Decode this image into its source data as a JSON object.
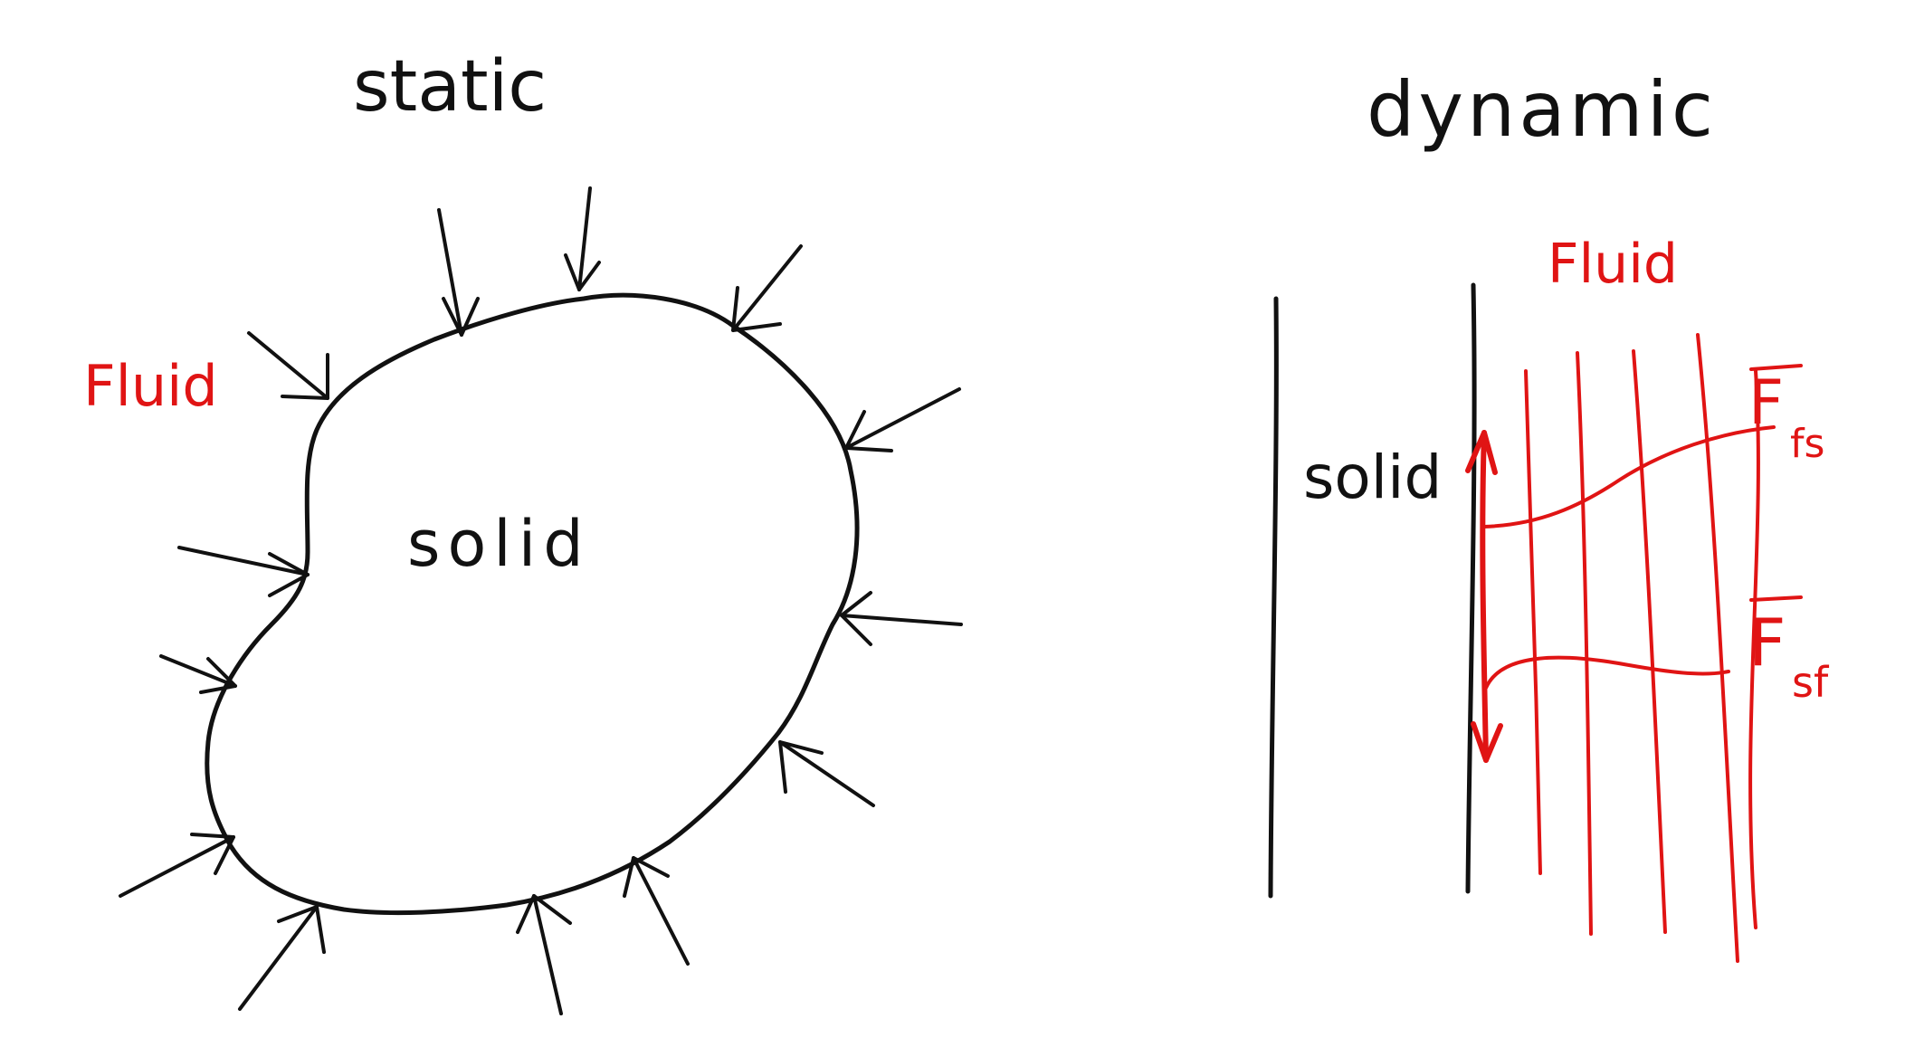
{
  "colors": {
    "ink": "#111111",
    "fluid_ink": "#e01414",
    "background": "#ffffff"
  },
  "static_panel": {
    "title": "static",
    "solid_label": "solid",
    "fluid_label": "Fluid"
  },
  "dynamic_panel": {
    "title": "dynamic",
    "solid_label": "solid",
    "fluid_label": "Fluid",
    "force_fluid_on_solid": "F",
    "force_fluid_on_solid_sub": "fs",
    "force_solid_on_fluid": "F",
    "force_solid_on_fluid_sub": "sf"
  }
}
